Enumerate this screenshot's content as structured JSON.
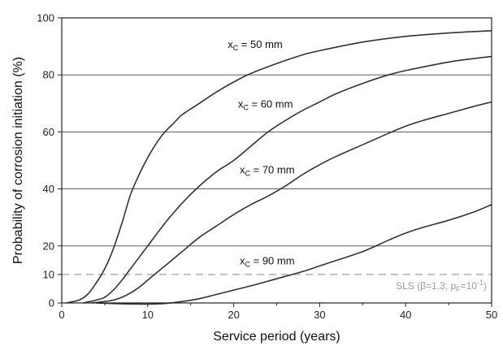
{
  "chart_data": {
    "type": "line",
    "xlabel": "Service period (years)",
    "ylabel": "Probability of corrosion initiation (%)",
    "xlim": [
      0,
      50
    ],
    "ylim": [
      0,
      100
    ],
    "xticks": [
      0,
      10,
      20,
      30,
      40,
      50
    ],
    "yticks": [
      0,
      10,
      20,
      40,
      60,
      80,
      100
    ],
    "gridlines_y": [
      20,
      40,
      60,
      80
    ],
    "series": [
      {
        "label_main": "x",
        "label_sub": "C",
        "label_rest": " = 50 mm",
        "color": "#333333",
        "points": [
          [
            0.5,
            0
          ],
          [
            2,
            1
          ],
          [
            3,
            3
          ],
          [
            4,
            7
          ],
          [
            5,
            12
          ],
          [
            6,
            19
          ],
          [
            7,
            28
          ],
          [
            8,
            38
          ],
          [
            9,
            45
          ],
          [
            10,
            51
          ],
          [
            11,
            56
          ],
          [
            12,
            60
          ],
          [
            13,
            63
          ],
          [
            14,
            66
          ],
          [
            16,
            70
          ],
          [
            18,
            74
          ],
          [
            20,
            77.5
          ],
          [
            22,
            80.5
          ],
          [
            25,
            84
          ],
          [
            28,
            87
          ],
          [
            30,
            88.5
          ],
          [
            35,
            91.5
          ],
          [
            40,
            93.5
          ],
          [
            45,
            94.7
          ],
          [
            50,
            95.5
          ]
        ]
      },
      {
        "label_main": "x",
        "label_sub": "C",
        "label_rest": " = 60 mm",
        "color": "#333333",
        "points": [
          [
            2.5,
            0
          ],
          [
            4,
            1
          ],
          [
            5,
            2
          ],
          [
            6,
            4.5
          ],
          [
            7,
            8
          ],
          [
            8,
            12
          ],
          [
            9,
            16
          ],
          [
            10,
            20
          ],
          [
            12,
            28
          ],
          [
            14,
            35
          ],
          [
            16,
            41
          ],
          [
            18,
            46
          ],
          [
            20,
            50
          ],
          [
            22,
            55
          ],
          [
            24,
            60
          ],
          [
            26,
            64
          ],
          [
            28,
            67.5
          ],
          [
            30,
            70.5
          ],
          [
            32,
            73.5
          ],
          [
            35,
            77
          ],
          [
            38,
            80
          ],
          [
            40,
            81.5
          ],
          [
            45,
            84.5
          ],
          [
            50,
            86.5
          ]
        ]
      },
      {
        "label_main": "x",
        "label_sub": "C",
        "label_rest": " = 70 mm",
        "color": "#333333",
        "points": [
          [
            3.5,
            0
          ],
          [
            5,
            0.5
          ],
          [
            6,
            1
          ],
          [
            7,
            2
          ],
          [
            8,
            3.5
          ],
          [
            9,
            5.5
          ],
          [
            10,
            8
          ],
          [
            12,
            13
          ],
          [
            14,
            18
          ],
          [
            16,
            23
          ],
          [
            18,
            27
          ],
          [
            20,
            31
          ],
          [
            22,
            34.5
          ],
          [
            24,
            37.5
          ],
          [
            26,
            41
          ],
          [
            28,
            45
          ],
          [
            30,
            48.5
          ],
          [
            32,
            51.5
          ],
          [
            35,
            55.5
          ],
          [
            38,
            59.5
          ],
          [
            40,
            62
          ],
          [
            42,
            64
          ],
          [
            45,
            66.5
          ],
          [
            48,
            69
          ],
          [
            50,
            70.5
          ]
        ]
      },
      {
        "label_main": "x",
        "label_sub": "C",
        "label_rest": " = 90 mm",
        "color": "#333333",
        "points": [
          [
            4,
            0
          ],
          [
            7,
            -0.3
          ],
          [
            10,
            -0.4
          ],
          [
            12,
            -0.2
          ],
          [
            14,
            0.5
          ],
          [
            16,
            1.5
          ],
          [
            18,
            3
          ],
          [
            20,
            4.5
          ],
          [
            22,
            6
          ],
          [
            25,
            8.5
          ],
          [
            28,
            11
          ],
          [
            30,
            13
          ],
          [
            32,
            15
          ],
          [
            35,
            18
          ],
          [
            38,
            22
          ],
          [
            40,
            24.5
          ],
          [
            42,
            26.5
          ],
          [
            45,
            29
          ],
          [
            48,
            32
          ],
          [
            50,
            34.5
          ]
        ]
      }
    ],
    "sls_line": {
      "y": 10,
      "label": "SLS (β=1.3; p",
      "label_sub": "F",
      "label_mid": "=10",
      "label_sup": "-1",
      "label_end": ")",
      "color": "#b5b5b5"
    }
  }
}
